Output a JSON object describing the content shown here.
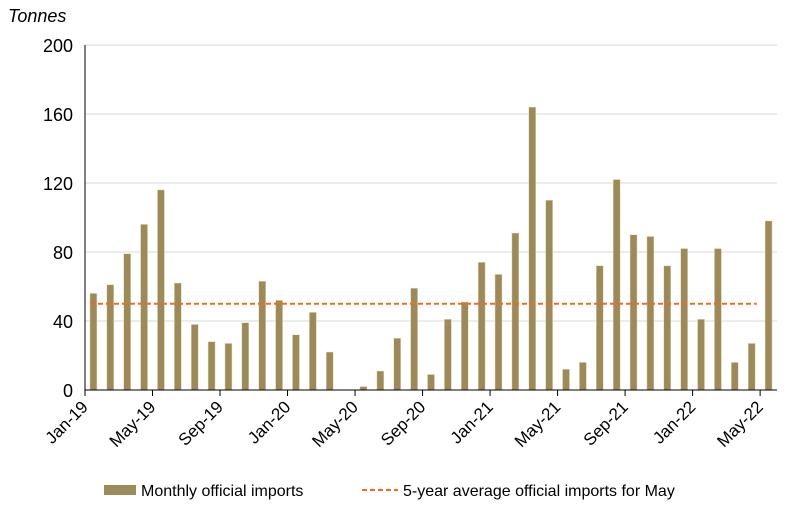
{
  "chart_data": {
    "type": "bar",
    "title": "",
    "ylabel": "Tonnes",
    "xlabel": "",
    "ylim": [
      0,
      200
    ],
    "yticks": [
      0,
      40,
      80,
      120,
      160,
      200
    ],
    "grid": true,
    "legend_position": "bottom",
    "categories": [
      "Jan-19",
      "Feb-19",
      "Mar-19",
      "Apr-19",
      "May-19",
      "Jun-19",
      "Jul-19",
      "Aug-19",
      "Sep-19",
      "Oct-19",
      "Nov-19",
      "Dec-19",
      "Jan-20",
      "Feb-20",
      "Mar-20",
      "Apr-20",
      "May-20",
      "Jun-20",
      "Jul-20",
      "Aug-20",
      "Sep-20",
      "Oct-20",
      "Nov-20",
      "Dec-20",
      "Jan-21",
      "Feb-21",
      "Mar-21",
      "Apr-21",
      "May-21",
      "Jun-21",
      "Jul-21",
      "Aug-21",
      "Sep-21",
      "Oct-21",
      "Nov-21",
      "Dec-21",
      "Jan-22",
      "Feb-22",
      "Mar-22",
      "Apr-22",
      "May-22"
    ],
    "xtick_labels": [
      "Jan-19",
      "May-19",
      "Sep-19",
      "Jan-20",
      "May-20",
      "Sep-20",
      "Jan-21",
      "May-21",
      "Sep-21",
      "Jan-22",
      "May-22"
    ],
    "series": [
      {
        "name": "Monthly official imports",
        "type": "bar",
        "color": "#9c8a5a",
        "values": [
          56,
          61,
          79,
          96,
          116,
          62,
          38,
          28,
          27,
          39,
          63,
          52,
          32,
          45,
          22,
          0,
          2,
          11,
          30,
          59,
          9,
          41,
          51,
          74,
          67,
          91,
          164,
          110,
          12,
          16,
          72,
          122,
          90,
          89,
          72,
          82,
          41,
          82,
          16,
          27,
          98
        ]
      },
      {
        "name": "5-year average official imports for May",
        "type": "line",
        "style": "dashed",
        "color": "#f26a1b",
        "value": 50
      }
    ]
  }
}
